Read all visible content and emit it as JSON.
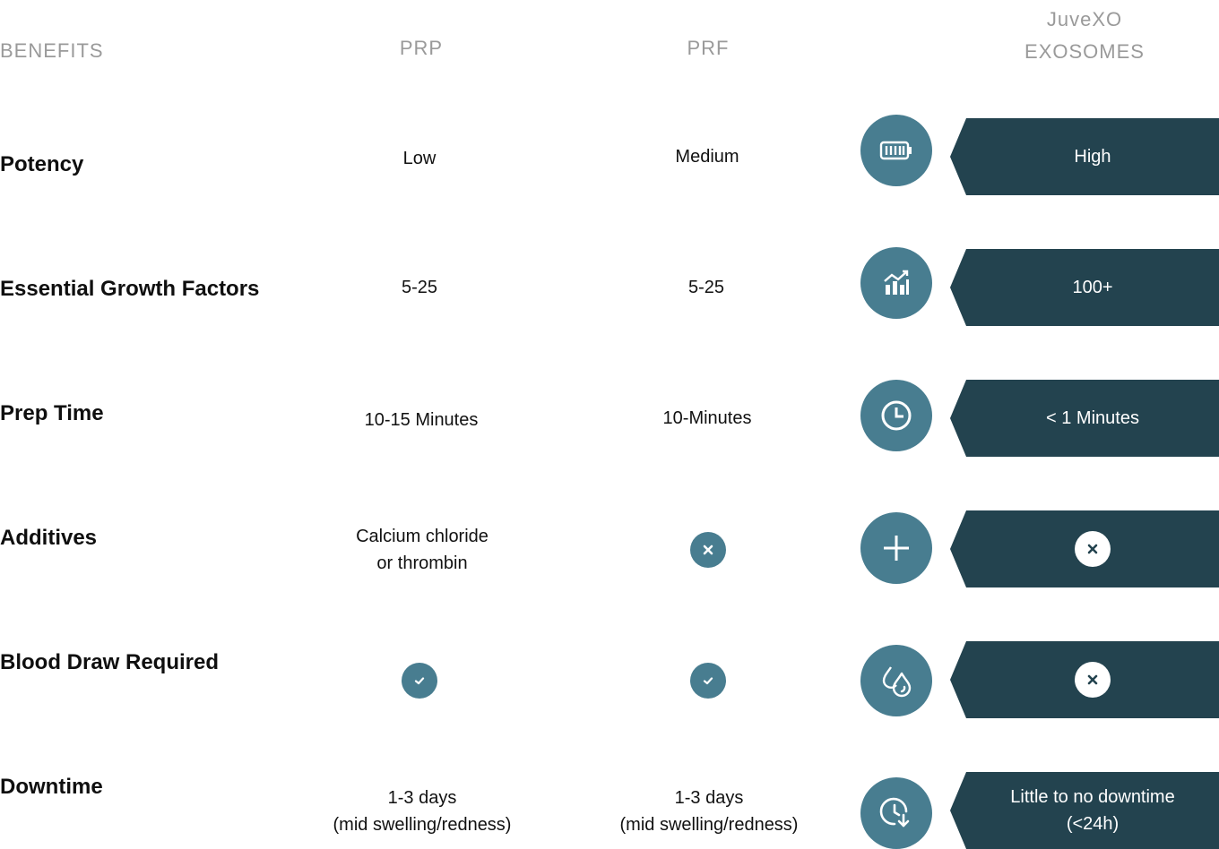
{
  "headers": {
    "benefits": "BENEFITS",
    "prp": "PRP",
    "prf": "PRF",
    "juvexo_line1": "JuveXO",
    "juvexo_line2": "EXOSOMES"
  },
  "colors": {
    "accent_circle": "#487d90",
    "banner_dark": "#23434f",
    "header_gray": "#9a9a9a"
  },
  "rows": [
    {
      "label": "Potency",
      "prp": "Low",
      "prf": "Medium",
      "icon": "battery-icon",
      "exo": "High"
    },
    {
      "label": "Essential Growth Factors",
      "prp": "5-25",
      "prf": "5-25",
      "icon": "growth-chart-icon",
      "exo": "100+"
    },
    {
      "label": "Prep Time",
      "prp": "10-15 Minutes",
      "prf": "10-Minutes",
      "icon": "clock-icon",
      "exo": "< 1 Minutes"
    },
    {
      "label": "Additives",
      "prp_line1": "Calcium chloride",
      "prp_line2": "or thrombin",
      "prf": "x-icon",
      "icon": "plus-icon",
      "exo": "x-icon"
    },
    {
      "label": "Blood Draw Required",
      "prp": "check-icon",
      "prf": "check-icon",
      "icon": "blood-drops-icon",
      "exo": "x-icon"
    },
    {
      "label": "Downtime",
      "prp_line1": "1-3 days",
      "prp_line2": "(mid swelling/redness)",
      "prf_line1": "1-3 days",
      "prf_line2": "(mid swelling/redness)",
      "icon": "time-down-icon",
      "exo_line1": "Little to no downtime",
      "exo_line2": "(<24h)"
    }
  ]
}
